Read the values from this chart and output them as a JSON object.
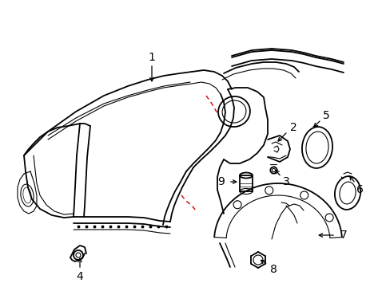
{
  "background_color": "#ffffff",
  "line_color": "#000000",
  "red_line_color": "#cc0000",
  "label_fontsize": 10,
  "fig_w": 4.89,
  "fig_h": 3.6,
  "dpi": 100
}
